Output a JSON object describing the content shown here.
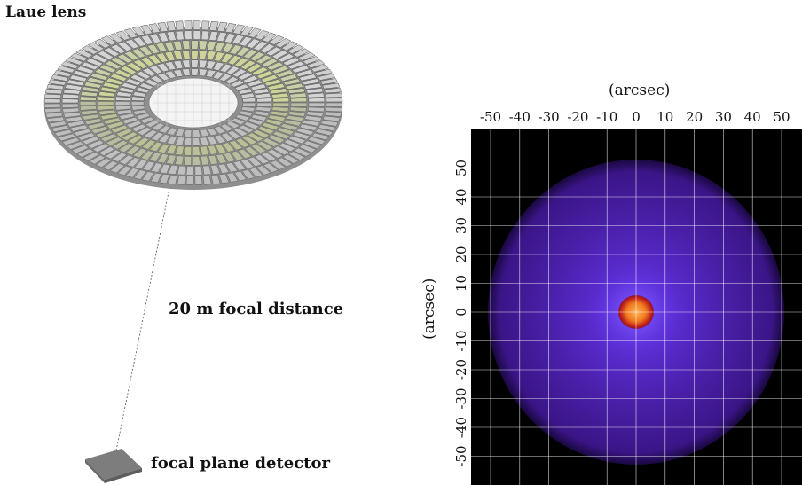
{
  "diagram": {
    "lens_label": "Laue lens",
    "distance_label": "20 m focal distance",
    "detector_label": "focal plane detector"
  },
  "psf_image": {
    "x_axis_label": "(arcsec)",
    "y_axis_label": "(arcsec)",
    "x_ticks": [
      "-50",
      "-40",
      "-30",
      "-20",
      "-10",
      "0",
      "10",
      "20",
      "30",
      "40",
      "50"
    ],
    "y_ticks": [
      "50",
      "40",
      "30",
      "20",
      "10",
      "0",
      "-10",
      "-20",
      "-30",
      "-40",
      "-50"
    ],
    "colors": {
      "background": "#000000",
      "halo": "#5a1fb0",
      "core": "#ff8c1a",
      "grid": "#ffffff"
    }
  }
}
